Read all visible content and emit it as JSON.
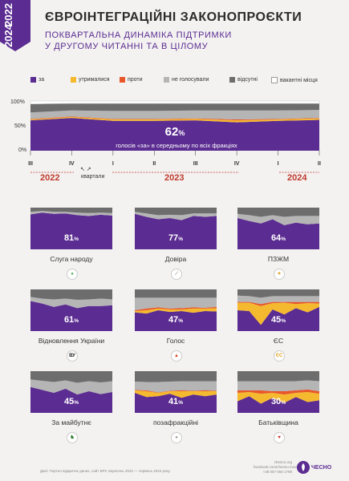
{
  "header": {
    "years_top": "2022",
    "years_bottom": "2024",
    "title": "ЄВРОІНТЕГРАЦІЙНІ ЗАКОНОПРОЄКТИ",
    "subtitle_line1": "ПОКВАРТАЛЬНА ДИНАМІКА ПІДТРИМКИ",
    "subtitle_line2": "У ДРУГОМУ ЧИТАННІ ТА В ЦІЛОМУ"
  },
  "colors": {
    "za": "#5b2c91",
    "utrymalysia": "#f5b92f",
    "proty": "#e8562a",
    "ne_holosuvaly": "#b5b5b5",
    "vidsutni": "#6d6d6d",
    "vakantni": "#ffffff"
  },
  "legend": [
    {
      "key": "za",
      "label": "за"
    },
    {
      "key": "utrymalysia",
      "label": "утрималися"
    },
    {
      "key": "proty",
      "label": "проти"
    },
    {
      "key": "ne_holosuvaly",
      "label": "не голосували"
    },
    {
      "key": "vidsutni",
      "label": "відсутні"
    },
    {
      "key": "vakantni",
      "label": "вакантні місця"
    }
  ],
  "main": {
    "avg_value": "62",
    "pct_sign": "%",
    "caption": "голосів «за» в середньому по всіх фракціях",
    "axis_caption": "квартали",
    "years": [
      "2022",
      "2023",
      "2024"
    ]
  },
  "chart_data": [
    {
      "type": "area",
      "name": "all",
      "x": [
        "2022 III",
        "2022 IV",
        "2023 I",
        "2023 II",
        "2023 III",
        "2023 IV",
        "2024 I",
        "2024 II"
      ],
      "yticks": [
        "100%",
        "50%",
        "0%"
      ],
      "ylim": [
        0,
        100
      ],
      "series": [
        {
          "name": "за",
          "values": [
            61,
            66,
            60,
            60,
            61,
            57,
            60,
            62
          ]
        },
        {
          "name": "утрималися",
          "values": [
            2,
            2,
            3,
            3,
            3,
            4,
            3,
            3
          ]
        },
        {
          "name": "проти",
          "values": [
            1,
            1,
            1,
            1,
            1,
            2,
            1,
            1
          ]
        },
        {
          "name": "не голосували",
          "values": [
            13,
            12,
            16,
            16,
            16,
            18,
            17,
            16
          ]
        },
        {
          "name": "відсутні",
          "values": [
            17,
            14,
            15,
            15,
            14,
            14,
            14,
            13
          ]
        },
        {
          "name": "вакантні місця",
          "values": [
            6,
            5,
            5,
            5,
            5,
            5,
            5,
            5
          ]
        }
      ]
    },
    {
      "type": "area",
      "name": "Слуга народу",
      "value": "81",
      "logo": "green-circle-icon",
      "x": [
        "2022 III",
        "2022 IV",
        "2023 I",
        "2023 II",
        "2023 III",
        "2023 IV",
        "2024 I",
        "2024 II"
      ],
      "series": [
        {
          "name": "за",
          "values": [
            84,
            88,
            85,
            86,
            82,
            80,
            83,
            81
          ]
        },
        {
          "name": "утрималися",
          "values": [
            0,
            0,
            0,
            0,
            0,
            0,
            0,
            0
          ]
        },
        {
          "name": "проти",
          "values": [
            0,
            0,
            0,
            0,
            0,
            0,
            0,
            0
          ]
        },
        {
          "name": "не голосували",
          "values": [
            6,
            4,
            5,
            4,
            6,
            7,
            5,
            6
          ]
        },
        {
          "name": "відсутні",
          "values": [
            10,
            8,
            10,
            10,
            12,
            13,
            12,
            13
          ]
        }
      ]
    },
    {
      "type": "area",
      "name": "Довіра",
      "value": "77",
      "logo": "feather-icon",
      "x": [
        "2022 III",
        "2022 IV",
        "2023 I",
        "2023 II",
        "2023 III",
        "2023 IV",
        "2024 I",
        "2024 II"
      ],
      "series": [
        {
          "name": "за",
          "values": [
            85,
            78,
            72,
            75,
            70,
            80,
            78,
            80
          ]
        },
        {
          "name": "утрималися",
          "values": [
            0,
            0,
            0,
            0,
            0,
            0,
            0,
            0
          ]
        },
        {
          "name": "проти",
          "values": [
            0,
            0,
            0,
            0,
            0,
            0,
            0,
            0
          ]
        },
        {
          "name": "не голосували",
          "values": [
            5,
            8,
            10,
            8,
            12,
            6,
            8,
            6
          ]
        },
        {
          "name": "відсутні",
          "values": [
            10,
            14,
            18,
            17,
            18,
            14,
            14,
            14
          ]
        }
      ]
    },
    {
      "type": "area",
      "name": "ПЗЖМ",
      "value": "64",
      "logo": "gear-icon",
      "x": [
        "2022 III",
        "2022 IV",
        "2023 I",
        "2023 II",
        "2023 III",
        "2023 IV",
        "2024 I",
        "2024 II"
      ],
      "series": [
        {
          "name": "за",
          "values": [
            75,
            68,
            62,
            72,
            58,
            64,
            60,
            62
          ]
        },
        {
          "name": "утрималися",
          "values": [
            0,
            0,
            0,
            0,
            0,
            0,
            0,
            0
          ]
        },
        {
          "name": "проти",
          "values": [
            0,
            0,
            0,
            0,
            0,
            0,
            0,
            0
          ]
        },
        {
          "name": "не голосували",
          "values": [
            10,
            14,
            16,
            10,
            20,
            16,
            20,
            18
          ]
        },
        {
          "name": "відсутні",
          "values": [
            15,
            18,
            22,
            18,
            22,
            20,
            20,
            20
          ]
        }
      ]
    },
    {
      "type": "area",
      "name": "Відновлення України",
      "value": "61",
      "logo": "vu-icon",
      "x": [
        "2022 III",
        "2022 IV",
        "2023 I",
        "2023 II",
        "2023 III",
        "2023 IV",
        "2024 I",
        "2024 II"
      ],
      "series": [
        {
          "name": "за",
          "values": [
            72,
            66,
            58,
            64,
            55,
            60,
            60,
            62
          ]
        },
        {
          "name": "утрималися",
          "values": [
            0,
            0,
            0,
            0,
            0,
            0,
            0,
            0
          ]
        },
        {
          "name": "проти",
          "values": [
            0,
            0,
            0,
            0,
            0,
            0,
            0,
            0
          ]
        },
        {
          "name": "не голосували",
          "values": [
            10,
            12,
            18,
            14,
            20,
            16,
            18,
            14
          ]
        },
        {
          "name": "відсутні",
          "values": [
            18,
            22,
            24,
            22,
            25,
            24,
            22,
            24
          ]
        }
      ]
    },
    {
      "type": "area",
      "name": "Голос",
      "value": "47",
      "logo": "flame-icon",
      "x": [
        "2022 III",
        "2022 IV",
        "2023 I",
        "2023 II",
        "2023 III",
        "2023 IV",
        "2024 I",
        "2024 II"
      ],
      "series": [
        {
          "name": "за",
          "values": [
            45,
            42,
            50,
            46,
            48,
            44,
            48,
            47
          ]
        },
        {
          "name": "утрималися",
          "values": [
            3,
            8,
            4,
            6,
            4,
            10,
            6,
            8
          ]
        },
        {
          "name": "проти",
          "values": [
            2,
            4,
            3,
            2,
            3,
            3,
            2,
            3
          ]
        },
        {
          "name": "не голосували",
          "values": [
            30,
            26,
            23,
            26,
            25,
            23,
            24,
            22
          ]
        },
        {
          "name": "відсутні",
          "values": [
            20,
            20,
            20,
            20,
            20,
            20,
            20,
            20
          ]
        }
      ]
    },
    {
      "type": "area",
      "name": "ЄС",
      "value": "45",
      "logo": "es-icon",
      "x": [
        "2022 III",
        "2022 IV",
        "2023 I",
        "2023 II",
        "2023 III",
        "2023 IV",
        "2024 I",
        "2024 II"
      ],
      "series": [
        {
          "name": "за",
          "values": [
            50,
            48,
            15,
            52,
            40,
            55,
            45,
            58
          ]
        },
        {
          "name": "утрималися",
          "values": [
            18,
            20,
            45,
            15,
            28,
            10,
            22,
            8
          ]
        },
        {
          "name": "проти",
          "values": [
            2,
            2,
            5,
            3,
            2,
            5,
            3,
            4
          ]
        },
        {
          "name": "не голосували",
          "values": [
            15,
            14,
            15,
            14,
            14,
            14,
            14,
            14
          ]
        },
        {
          "name": "відсутні",
          "values": [
            15,
            16,
            20,
            16,
            16,
            16,
            16,
            16
          ]
        }
      ]
    },
    {
      "type": "area",
      "name": "За майбутнє",
      "value": "45",
      "logo": "horse-icon",
      "x": [
        "2022 III",
        "2022 IV",
        "2023 I",
        "2023 II",
        "2023 III",
        "2023 IV",
        "2024 I",
        "2024 II"
      ],
      "series": [
        {
          "name": "за",
          "values": [
            62,
            55,
            48,
            58,
            44,
            52,
            45,
            50
          ]
        },
        {
          "name": "утрималися",
          "values": [
            0,
            0,
            0,
            0,
            0,
            0,
            0,
            0
          ]
        },
        {
          "name": "проти",
          "values": [
            0,
            0,
            0,
            0,
            0,
            0,
            0,
            0
          ]
        },
        {
          "name": "не голосували",
          "values": [
            18,
            22,
            26,
            20,
            28,
            24,
            28,
            26
          ]
        },
        {
          "name": "відсутні",
          "values": [
            20,
            23,
            26,
            22,
            28,
            24,
            27,
            24
          ]
        }
      ]
    },
    {
      "type": "area",
      "name": "позафракційні",
      "value": "41",
      "logo": "person-icon",
      "x": [
        "2022 III",
        "2022 IV",
        "2023 I",
        "2023 II",
        "2023 III",
        "2023 IV",
        "2024 I",
        "2024 II"
      ],
      "series": [
        {
          "name": "за",
          "values": [
            48,
            38,
            40,
            46,
            36,
            44,
            40,
            44
          ]
        },
        {
          "name": "утрималися",
          "values": [
            6,
            14,
            8,
            6,
            16,
            8,
            12,
            8
          ]
        },
        {
          "name": "проти",
          "values": [
            1,
            2,
            1,
            1,
            2,
            1,
            2,
            1
          ]
        },
        {
          "name": "не голосували",
          "values": [
            20,
            20,
            25,
            22,
            22,
            23,
            22,
            23
          ]
        },
        {
          "name": "відсутні",
          "values": [
            25,
            26,
            26,
            25,
            24,
            24,
            24,
            24
          ]
        }
      ]
    },
    {
      "type": "area",
      "name": "Батьківщина",
      "value": "30",
      "logo": "heart-icon",
      "x": [
        "2022 III",
        "2022 IV",
        "2023 I",
        "2023 II",
        "2023 III",
        "2023 IV",
        "2024 I",
        "2024 II"
      ],
      "series": [
        {
          "name": "за",
          "values": [
            28,
            40,
            22,
            36,
            24,
            38,
            26,
            30
          ]
        },
        {
          "name": "утрималися",
          "values": [
            20,
            10,
            24,
            12,
            20,
            10,
            24,
            16
          ]
        },
        {
          "name": "проти",
          "values": [
            6,
            4,
            8,
            4,
            8,
            6,
            6,
            6
          ]
        },
        {
          "name": "не голосували",
          "values": [
            22,
            22,
            22,
            24,
            24,
            22,
            22,
            24
          ]
        },
        {
          "name": "відсутні",
          "values": [
            24,
            24,
            24,
            24,
            24,
            24,
            22,
            24
          ]
        }
      ]
    }
  ],
  "footer": {
    "note": "Дані: Портал відкритих даних, сайт ВРУ, вересень 2022 — червень 2024 року.",
    "site": "chesno.org",
    "facebook": "facebook.com/chesno.movement",
    "phone": "+38 067 658 1798",
    "brand": "ЧЕСНО"
  }
}
